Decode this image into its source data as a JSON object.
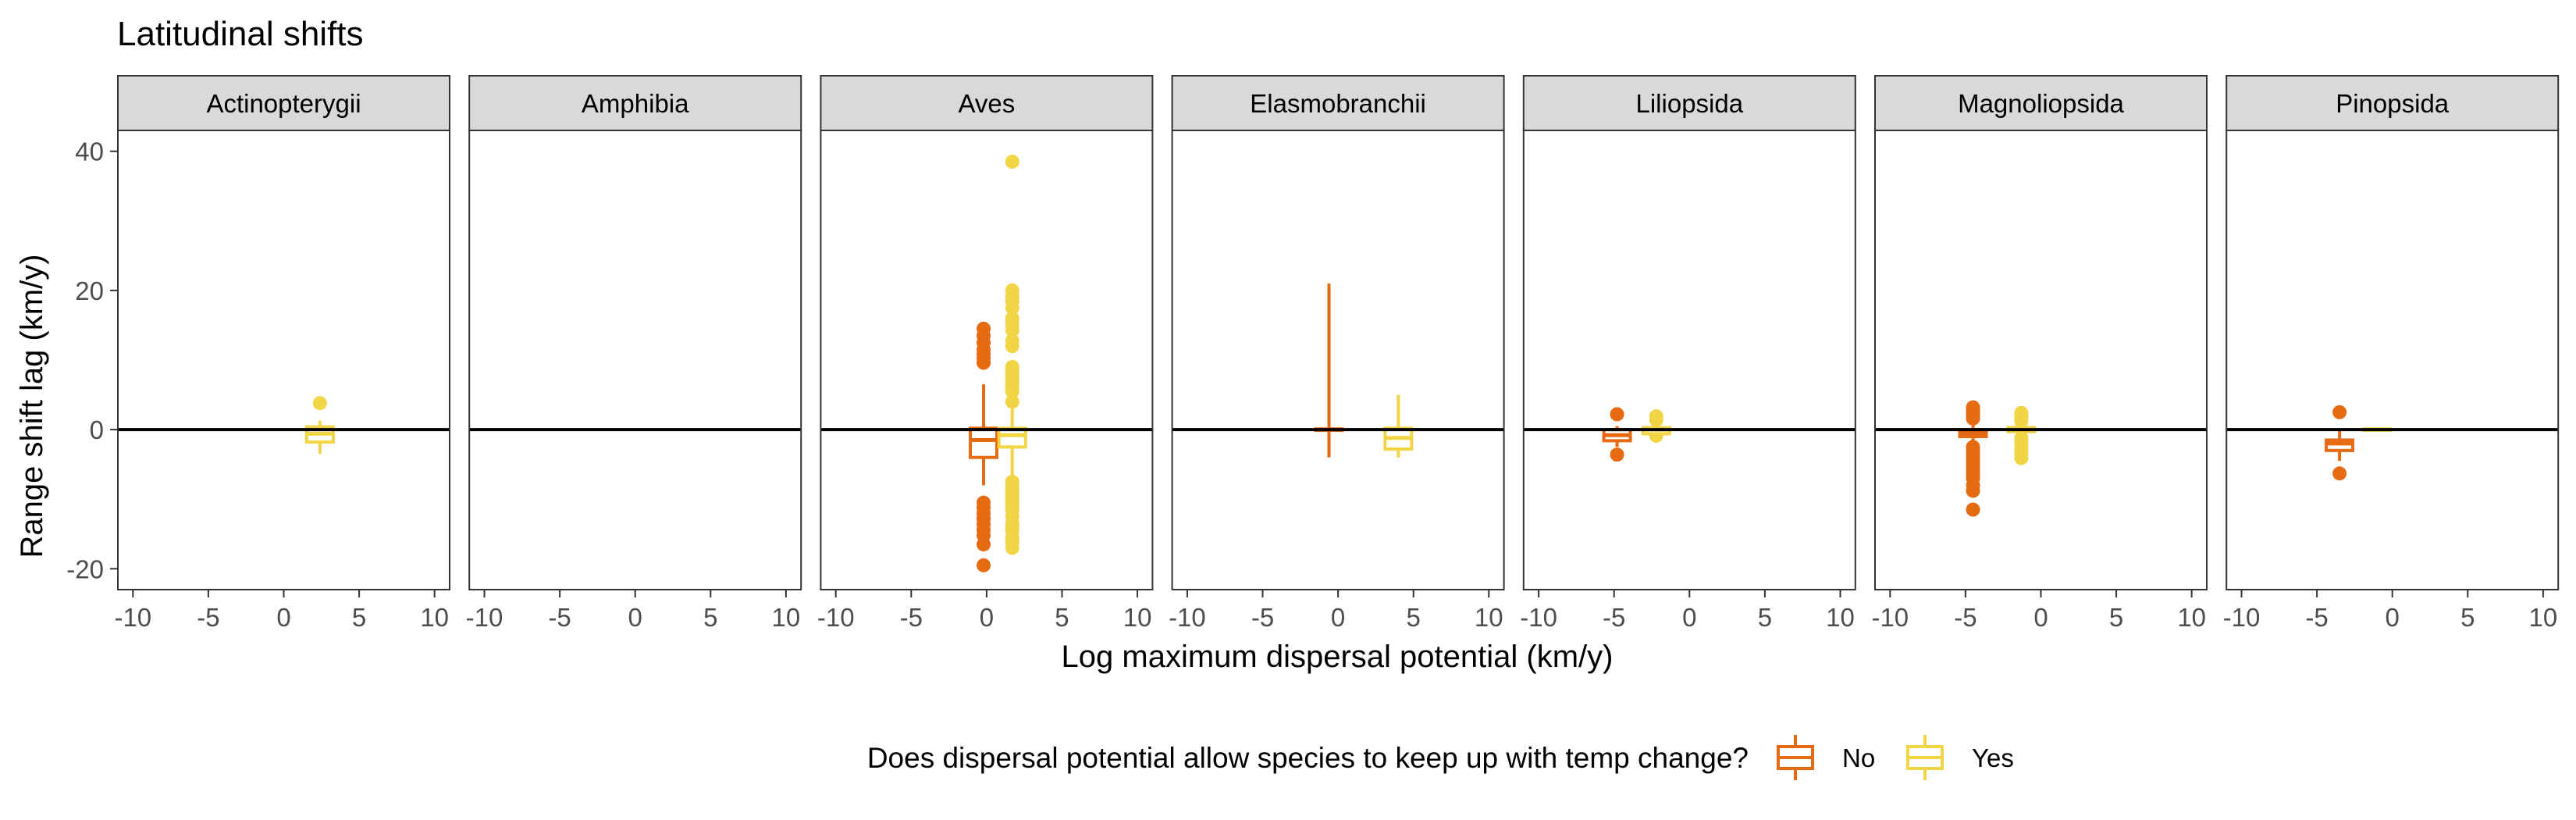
{
  "chart_data": {
    "type": "boxplot",
    "title": "Latitudinal shifts",
    "xlabel": "Log maximum dispersal potential (km/y)",
    "ylabel": "Range shift lag (km/y)",
    "xlim": [
      -11,
      11
    ],
    "ylim": [
      -23,
      43
    ],
    "x_ticks": [
      -10,
      -5,
      0,
      5,
      10
    ],
    "x_tick_labels": [
      "-10",
      "-5",
      "0",
      "5",
      "10"
    ],
    "y_ticks": [
      -20,
      0,
      20,
      40
    ],
    "y_tick_labels": [
      "-20",
      "0",
      "20",
      "40"
    ],
    "reference_line_y": 0,
    "legend": {
      "title": "Does dispersal potential allow species to keep up with temp change?",
      "position": "bottom",
      "entries": [
        {
          "label": "No",
          "color": "#E66A12"
        },
        {
          "label": "Yes",
          "color": "#F2D545"
        }
      ]
    },
    "panels": [
      {
        "name": "Actinopterygii",
        "boxes": [
          {
            "group": "Yes",
            "x": 2.4,
            "q1": -1.8,
            "median": -0.6,
            "q3": 0.4,
            "whisker_low": -3.5,
            "whisker_high": 1.3,
            "outliers": [
              3.8
            ]
          }
        ]
      },
      {
        "name": "Amphibia",
        "boxes": []
      },
      {
        "name": "Aves",
        "boxes": [
          {
            "group": "No",
            "x": -0.2,
            "q1": -4,
            "median": -1.5,
            "q3": 0.2,
            "whisker_low": -8,
            "whisker_high": 6.5,
            "outliers": [
              14.5,
              13.5,
              12.5,
              11.5,
              10.8,
              10.2,
              9.6,
              -10.5,
              -11.2,
              -12,
              -12.8,
              -13.6,
              -14.4,
              -15.2,
              -16.5,
              -19.5
            ]
          },
          {
            "group": "Yes",
            "x": 1.7,
            "q1": -2.5,
            "median": -0.8,
            "q3": 0.2,
            "whisker_low": -6.5,
            "whisker_high": 3,
            "outliers": [
              38.5,
              20,
              19.2,
              18.5,
              17.5,
              16,
              15.2,
              14.3,
              12.8,
              12,
              9,
              8.5,
              8,
              7.5,
              7,
              6.5,
              6,
              5.5,
              4,
              -7.5,
              -8,
              -8.5,
              -9,
              -9.5,
              -10,
              -10.5,
              -11,
              -11.5,
              -12.5,
              -13.5,
              -14,
              -14.5,
              -15.5,
              -16.2,
              -17
            ]
          }
        ]
      },
      {
        "name": "Elasmobranchii",
        "boxes": [
          {
            "group": "No",
            "x": -0.6,
            "q1": -0.1,
            "median": 0,
            "q3": 0.1,
            "whisker_low": -4,
            "whisker_high": 21,
            "outliers": []
          },
          {
            "group": "Yes",
            "x": 4,
            "q1": -2.8,
            "median": -1.2,
            "q3": 0.2,
            "whisker_low": -4,
            "whisker_high": 5,
            "outliers": []
          }
        ]
      },
      {
        "name": "Liliopsida",
        "boxes": [
          {
            "group": "No",
            "x": -4.8,
            "q1": -1.6,
            "median": -0.8,
            "q3": 0,
            "whisker_low": -2.5,
            "whisker_high": 0.5,
            "outliers": [
              2.2,
              -3.6
            ]
          },
          {
            "group": "Yes",
            "x": -2.2,
            "q1": -0.6,
            "median": 0,
            "q3": 0.3,
            "whisker_low": -1.2,
            "whisker_high": 0.8,
            "outliers": [
              1.9,
              1.4,
              -0.9
            ]
          }
        ]
      },
      {
        "name": "Magnoliopsida",
        "boxes": [
          {
            "group": "No",
            "x": -4.5,
            "q1": -1,
            "median": -0.5,
            "q3": 0,
            "whisker_low": -2,
            "whisker_high": 1,
            "outliers": [
              3.2,
              2.8,
              2.4,
              2,
              1.6,
              -2.5,
              -3,
              -3.5,
              -4,
              -4.5,
              -5,
              -5.5,
              -6,
              -6.5,
              -7,
              -8,
              -8.8,
              -11.5
            ]
          },
          {
            "group": "Yes",
            "x": -1.3,
            "q1": -0.3,
            "median": 0,
            "q3": 0.3,
            "whisker_low": -0.8,
            "whisker_high": 0.8,
            "outliers": [
              2.4,
              2,
              1.6,
              1.2,
              -1.2,
              -1.8,
              -2.4,
              -3,
              -3.6,
              -4.1
            ]
          }
        ]
      },
      {
        "name": "Pinopsida",
        "boxes": [
          {
            "group": "No",
            "x": -3.5,
            "q1": -3,
            "median": -2,
            "q3": -1.5,
            "whisker_low": -4.5,
            "whisker_high": 0,
            "outliers": [
              2.5,
              -6.3
            ]
          },
          {
            "group": "Yes",
            "x": -1,
            "q1": -0.1,
            "median": 0,
            "q3": 0.1,
            "whisker_low": -0.3,
            "whisker_high": 0.3,
            "outliers": []
          }
        ]
      }
    ]
  }
}
